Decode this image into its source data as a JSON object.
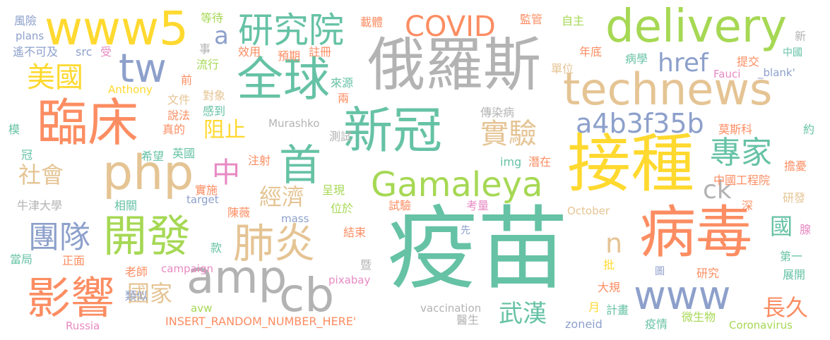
{
  "palette": {
    "green": "#66c2a5",
    "orange": "#fc8d62",
    "blue": "#8da0cb",
    "pink": "#e78ac3",
    "lime": "#a6d854",
    "yellow": "#ffd92f",
    "tan": "#e5c494",
    "gray": "#b3b3b3"
  },
  "words": [
    {
      "text": "疫苗",
      "color": "#66c2a5"
    },
    {
      "text": "俄羅斯",
      "color": "#b3b3b3"
    },
    {
      "text": "病毒",
      "color": "#fc8d62"
    },
    {
      "text": "接種",
      "color": "#ffd92f"
    },
    {
      "text": "新冠",
      "color": "#66c2a5"
    },
    {
      "text": "臨床",
      "color": "#fc8d62"
    },
    {
      "text": "technews",
      "color": "#e5c494"
    },
    {
      "text": "delivery",
      "color": "#a6d854"
    },
    {
      "text": "www5",
      "color": "#ffd92f"
    },
    {
      "text": "全球",
      "color": "#66c2a5"
    },
    {
      "text": "php",
      "color": "#e5c494"
    },
    {
      "text": "amp",
      "color": "#b3b3b3"
    },
    {
      "text": "cb",
      "color": "#b3b3b3"
    },
    {
      "text": "www",
      "color": "#8da0cb"
    },
    {
      "text": "影響",
      "color": "#fc8d62"
    },
    {
      "text": "開發",
      "color": "#a6d854"
    },
    {
      "text": "肺炎",
      "color": "#e5c494"
    },
    {
      "text": "Gamaleya",
      "color": "#a6d854"
    },
    {
      "text": "tw",
      "color": "#8da0cb"
    },
    {
      "text": "首",
      "color": "#66c2a5"
    },
    {
      "text": "研究院",
      "color": "#66c2a5"
    },
    {
      "text": "專家",
      "color": "#66c2a5"
    },
    {
      "text": "團隊",
      "color": "#8da0cb"
    },
    {
      "text": "美國",
      "color": "#ffd92f"
    },
    {
      "text": "COVID",
      "color": "#fc8d62"
    },
    {
      "text": "a4b3f35b",
      "color": "#8da0cb"
    },
    {
      "text": "實驗",
      "color": "#e5c494"
    },
    {
      "text": "中",
      "color": "#e78ac3"
    },
    {
      "text": "href",
      "color": "#8da0cb"
    },
    {
      "text": "經濟",
      "color": "#e5c494"
    },
    {
      "text": "社會",
      "color": "#e5c494"
    },
    {
      "text": "國家",
      "color": "#e5c494"
    },
    {
      "text": "長久",
      "color": "#fc8d62"
    },
    {
      "text": "武漢",
      "color": "#66c2a5"
    },
    {
      "text": "阻止",
      "color": "#ffd92f"
    },
    {
      "text": "國",
      "color": "#66c2a5"
    },
    {
      "text": "ck",
      "color": "#b3b3b3"
    },
    {
      "text": "a",
      "color": "#8da0cb"
    },
    {
      "text": "n",
      "color": "#e5c494"
    },
    {
      "text": "風險",
      "color": "#8da0cb"
    },
    {
      "text": "plans",
      "color": "#8da0cb"
    },
    {
      "text": "遙不可及",
      "color": "#8da0cb"
    },
    {
      "text": "src",
      "color": "#8da0cb"
    },
    {
      "text": "受",
      "color": "#e78ac3"
    },
    {
      "text": "前",
      "color": "#fc8d62"
    },
    {
      "text": "Anthony",
      "color": "#ffd92f"
    },
    {
      "text": "事",
      "color": "#b3b3b3"
    },
    {
      "text": "流行",
      "color": "#a6d854"
    },
    {
      "text": "效用",
      "color": "#fc8d62"
    },
    {
      "text": "預期",
      "color": "#fc8d62"
    },
    {
      "text": "註冊",
      "color": "#fc8d62"
    },
    {
      "text": "等待",
      "color": "#a6d854"
    },
    {
      "text": "載體",
      "color": "#fc8d62"
    },
    {
      "text": "監管",
      "color": "#fc8d62"
    },
    {
      "text": "自主",
      "color": "#a6d854"
    },
    {
      "text": "年底",
      "color": "#fc8d62"
    },
    {
      "text": "單位",
      "color": "#e5c494"
    },
    {
      "text": "病學",
      "color": "#66c2a5"
    },
    {
      "text": "提交",
      "color": "#fc8d62"
    },
    {
      "text": "新",
      "color": "#b3b3b3"
    },
    {
      "text": "中國",
      "color": "#66c2a5"
    },
    {
      "text": "Fauci",
      "color": "#e78ac3"
    },
    {
      "text": "_blank'",
      "color": "#8da0cb"
    },
    {
      "text": "來源",
      "color": "#66c2a5"
    },
    {
      "text": "兩",
      "color": "#fc8d62"
    },
    {
      "text": "文件",
      "color": "#e5c494"
    },
    {
      "text": "對象",
      "color": "#e5c494"
    },
    {
      "text": "說法",
      "color": "#fc8d62"
    },
    {
      "text": "感到",
      "color": "#66c2a5"
    },
    {
      "text": "真的",
      "color": "#fc8d62"
    },
    {
      "text": "傳染病",
      "color": "#b3b3b3"
    },
    {
      "text": "莫斯科",
      "color": "#fc8d62"
    },
    {
      "text": "約",
      "color": "#66c2a5"
    },
    {
      "text": "Murashko",
      "color": "#b3b3b3"
    },
    {
      "text": "測試",
      "color": "#b3b3b3"
    },
    {
      "text": "模",
      "color": "#66c2a5"
    },
    {
      "text": "冠",
      "color": "#66c2a5"
    },
    {
      "text": "希望",
      "color": "#66c2a5"
    },
    {
      "text": "英國",
      "color": "#66c2a5"
    },
    {
      "text": "注射",
      "color": "#fc8d62"
    },
    {
      "text": "img",
      "color": "#66c2a5"
    },
    {
      "text": "潛在",
      "color": "#fc8d62"
    },
    {
      "text": "擔憂",
      "color": "#fc8d62"
    },
    {
      "text": "中國工程院",
      "color": "#fc8d62"
    },
    {
      "text": "研發",
      "color": "#e5c494"
    },
    {
      "text": "牛津大學",
      "color": "#b3b3b3"
    },
    {
      "text": "實施",
      "color": "#fc8d62"
    },
    {
      "text": "target",
      "color": "#8da0cb"
    },
    {
      "text": "呈現",
      "color": "#a6d854"
    },
    {
      "text": "相關",
      "color": "#66c2a5"
    },
    {
      "text": "陳薇",
      "color": "#fc8d62"
    },
    {
      "text": "位於",
      "color": "#a6d854"
    },
    {
      "text": "試驗",
      "color": "#fc8d62"
    },
    {
      "text": "考量",
      "color": "#e78ac3"
    },
    {
      "text": "深",
      "color": "#fc8d62"
    },
    {
      "text": "October",
      "color": "#e5c494"
    },
    {
      "text": "mass",
      "color": "#8da0cb"
    },
    {
      "text": "結束",
      "color": "#fc8d62"
    },
    {
      "text": "款",
      "color": "#66c2a5"
    },
    {
      "text": "先",
      "color": "#8da0cb"
    },
    {
      "text": "腺",
      "color": "#e78ac3"
    },
    {
      "text": "當局",
      "color": "#66c2a5"
    },
    {
      "text": "正面",
      "color": "#fc8d62"
    },
    {
      "text": "老師",
      "color": "#fc8d62"
    },
    {
      "text": "campaign",
      "color": "#e78ac3"
    },
    {
      "text": "暨",
      "color": "#b3b3b3"
    },
    {
      "text": "pixabay",
      "color": "#e78ac3"
    },
    {
      "text": "批",
      "color": "#ffd92f"
    },
    {
      "text": "圖",
      "color": "#8da0cb"
    },
    {
      "text": "第一",
      "color": "#66c2a5"
    },
    {
      "text": "研究",
      "color": "#fc8d62"
    },
    {
      "text": "展開",
      "color": "#66c2a5"
    },
    {
      "text": "大規",
      "color": "#fc8d62"
    },
    {
      "text": "類似",
      "color": "#8da0cb"
    },
    {
      "text": "avw",
      "color": "#a6d854"
    },
    {
      "text": "vaccination",
      "color": "#b3b3b3"
    },
    {
      "text": "月",
      "color": "#ffd92f"
    },
    {
      "text": "計畫",
      "color": "#66c2a5"
    },
    {
      "text": "Russia",
      "color": "#e78ac3"
    },
    {
      "text": "INSERT_RANDOM_NUMBER_HERE'",
      "color": "#fc8d62"
    },
    {
      "text": "醫生",
      "color": "#b3b3b3"
    },
    {
      "text": "zoneid",
      "color": "#8da0cb"
    },
    {
      "text": "疫情",
      "color": "#66c2a5"
    },
    {
      "text": "微生物",
      "color": "#a6d854"
    },
    {
      "text": "Coronavirus",
      "color": "#a6d854"
    }
  ]
}
